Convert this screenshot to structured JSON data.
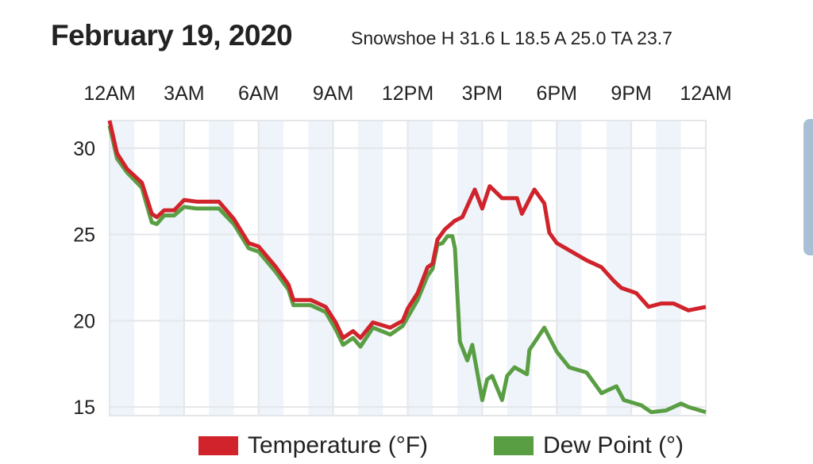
{
  "header": {
    "title": "February 19, 2020",
    "subtitle": "Snowshoe H 31.6 L 18.5 A 25.0 TA 23.7"
  },
  "colors": {
    "temperature": "#d0232b",
    "dew_point": "#5a9e44",
    "band": "#eef4fa",
    "grid": "#e4e6ea"
  },
  "chart_data": {
    "type": "line",
    "title": "February 19, 2020",
    "x_unit": "hours since midnight",
    "xlim": [
      0,
      24
    ],
    "ylim": [
      14.5,
      31.6
    ],
    "x_ticks": [
      {
        "hour": 0,
        "label": "12AM"
      },
      {
        "hour": 3,
        "label": "3AM"
      },
      {
        "hour": 6,
        "label": "6AM"
      },
      {
        "hour": 9,
        "label": "9AM"
      },
      {
        "hour": 12,
        "label": "12PM"
      },
      {
        "hour": 15,
        "label": "3PM"
      },
      {
        "hour": 18,
        "label": "6PM"
      },
      {
        "hour": 21,
        "label": "9PM"
      },
      {
        "hour": 24,
        "label": "12AM"
      }
    ],
    "y_ticks": [
      {
        "value": 15,
        "label": "15"
      },
      {
        "value": 20,
        "label": "20"
      },
      {
        "value": 25,
        "label": "25"
      },
      {
        "value": 30,
        "label": "30"
      }
    ],
    "grid": true,
    "shaded_hours": "even hours",
    "legend_position": "bottom",
    "series": [
      {
        "name": "Temperature (°F)",
        "color": "#d0232b",
        "points": [
          [
            0,
            31.6
          ],
          [
            0.3,
            29.7
          ],
          [
            0.7,
            28.8
          ],
          [
            1.3,
            28.0
          ],
          [
            1.7,
            26.2
          ],
          [
            1.9,
            26.0
          ],
          [
            2.2,
            26.4
          ],
          [
            2.6,
            26.4
          ],
          [
            3.0,
            27.0
          ],
          [
            3.5,
            26.9
          ],
          [
            4.4,
            26.9
          ],
          [
            5.0,
            25.9
          ],
          [
            5.6,
            24.5
          ],
          [
            6.0,
            24.3
          ],
          [
            6.7,
            23.1
          ],
          [
            7.2,
            22.1
          ],
          [
            7.4,
            21.2
          ],
          [
            8.1,
            21.2
          ],
          [
            8.7,
            20.8
          ],
          [
            9.1,
            19.9
          ],
          [
            9.4,
            19.0
          ],
          [
            9.8,
            19.4
          ],
          [
            10.1,
            19.0
          ],
          [
            10.6,
            19.9
          ],
          [
            11.3,
            19.6
          ],
          [
            11.8,
            20.0
          ],
          [
            12.0,
            20.7
          ],
          [
            12.4,
            21.6
          ],
          [
            12.8,
            23.1
          ],
          [
            13.0,
            23.3
          ],
          [
            13.2,
            24.7
          ],
          [
            13.5,
            25.3
          ],
          [
            13.9,
            25.8
          ],
          [
            14.2,
            26.0
          ],
          [
            14.7,
            27.6
          ],
          [
            15.0,
            26.5
          ],
          [
            15.3,
            27.8
          ],
          [
            15.8,
            27.1
          ],
          [
            16.4,
            27.1
          ],
          [
            16.6,
            26.2
          ],
          [
            17.1,
            27.6
          ],
          [
            17.5,
            26.8
          ],
          [
            17.7,
            25.1
          ],
          [
            18.0,
            24.5
          ],
          [
            18.6,
            24.0
          ],
          [
            19.2,
            23.5
          ],
          [
            19.8,
            23.1
          ],
          [
            20.3,
            22.3
          ],
          [
            20.6,
            21.9
          ],
          [
            21.2,
            21.6
          ],
          [
            21.7,
            20.8
          ],
          [
            22.2,
            21.0
          ],
          [
            22.7,
            21.0
          ],
          [
            23.3,
            20.6
          ],
          [
            24.0,
            20.8
          ]
        ]
      },
      {
        "name": "Dew Point (°)",
        "color": "#5a9e44",
        "points": [
          [
            0,
            31.3
          ],
          [
            0.3,
            29.4
          ],
          [
            0.7,
            28.6
          ],
          [
            1.3,
            27.7
          ],
          [
            1.7,
            25.7
          ],
          [
            1.9,
            25.6
          ],
          [
            2.2,
            26.1
          ],
          [
            2.6,
            26.1
          ],
          [
            3.0,
            26.6
          ],
          [
            3.5,
            26.5
          ],
          [
            4.4,
            26.5
          ],
          [
            5.0,
            25.6
          ],
          [
            5.6,
            24.2
          ],
          [
            6.0,
            24.0
          ],
          [
            6.7,
            22.8
          ],
          [
            7.2,
            21.8
          ],
          [
            7.4,
            20.9
          ],
          [
            8.1,
            20.9
          ],
          [
            8.7,
            20.5
          ],
          [
            9.1,
            19.5
          ],
          [
            9.4,
            18.6
          ],
          [
            9.8,
            19.0
          ],
          [
            10.1,
            18.5
          ],
          [
            10.6,
            19.6
          ],
          [
            11.3,
            19.2
          ],
          [
            11.8,
            19.7
          ],
          [
            12.0,
            20.2
          ],
          [
            12.4,
            21.2
          ],
          [
            12.8,
            22.6
          ],
          [
            13.0,
            23.0
          ],
          [
            13.2,
            24.4
          ],
          [
            13.4,
            24.5
          ],
          [
            13.6,
            24.9
          ],
          [
            13.8,
            24.9
          ],
          [
            13.9,
            24.2
          ],
          [
            14.1,
            18.8
          ],
          [
            14.4,
            17.7
          ],
          [
            14.6,
            18.6
          ],
          [
            15.0,
            15.4
          ],
          [
            15.2,
            16.6
          ],
          [
            15.4,
            16.8
          ],
          [
            15.8,
            15.4
          ],
          [
            16.0,
            16.8
          ],
          [
            16.3,
            17.3
          ],
          [
            16.8,
            16.9
          ],
          [
            16.9,
            18.3
          ],
          [
            17.5,
            19.6
          ],
          [
            18.0,
            18.2
          ],
          [
            18.5,
            17.3
          ],
          [
            19.2,
            17.0
          ],
          [
            19.8,
            15.8
          ],
          [
            20.4,
            16.2
          ],
          [
            20.7,
            15.4
          ],
          [
            21.4,
            15.1
          ],
          [
            21.8,
            14.7
          ],
          [
            22.4,
            14.8
          ],
          [
            23.0,
            15.2
          ],
          [
            23.3,
            15.0
          ],
          [
            24.0,
            14.7
          ]
        ]
      }
    ]
  },
  "legend": [
    {
      "label": "Temperature (°F)"
    },
    {
      "label": "Dew Point (°)"
    }
  ]
}
